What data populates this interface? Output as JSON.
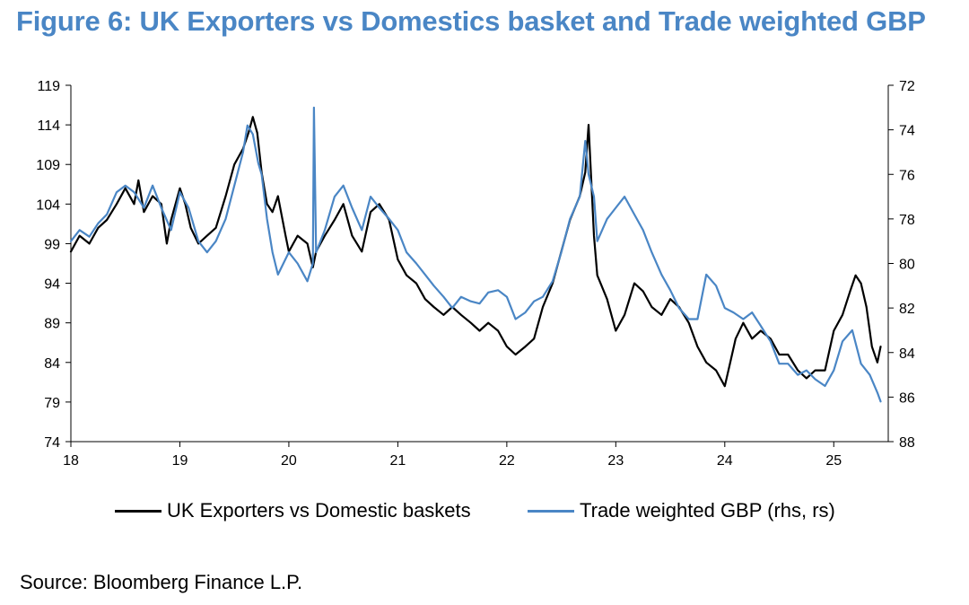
{
  "title": "Figure 6: UK Exporters vs Domestics basket and Trade weighted GBP",
  "source": "Source: Bloomberg Finance L.P.",
  "colors": {
    "title": "#4a86c5",
    "series_black": "#000000",
    "series_blue": "#4a86c5"
  },
  "chart_data": {
    "type": "line",
    "title": "Figure 6: UK Exporters vs Domestics basket and Trade weighted GBP",
    "xlabel": "",
    "ylabel": "",
    "x_ticks": [
      "18",
      "19",
      "20",
      "21",
      "22",
      "23",
      "24",
      "25"
    ],
    "xlim": [
      2018.0,
      2025.5
    ],
    "y_left": {
      "lim": [
        74,
        119
      ],
      "ticks": [
        74,
        79,
        84,
        89,
        94,
        99,
        104,
        109,
        114,
        119
      ]
    },
    "y_right": {
      "lim": [
        72,
        88
      ],
      "inverted": true,
      "ticks": [
        72,
        74,
        76,
        78,
        80,
        82,
        84,
        86,
        88
      ]
    },
    "grid": false,
    "legend_position": "bottom",
    "series": [
      {
        "name": "UK Exporters vs Domestic baskets",
        "axis": "left",
        "color": "#000000",
        "x": [
          2018.0,
          2018.08,
          2018.17,
          2018.25,
          2018.33,
          2018.42,
          2018.5,
          2018.58,
          2018.62,
          2018.67,
          2018.75,
          2018.83,
          2018.88,
          2018.92,
          2019.0,
          2019.05,
          2019.1,
          2019.17,
          2019.25,
          2019.33,
          2019.42,
          2019.5,
          2019.58,
          2019.63,
          2019.67,
          2019.71,
          2019.75,
          2019.8,
          2019.85,
          2019.9,
          2019.97,
          2020.0,
          2020.08,
          2020.17,
          2020.22,
          2020.25,
          2020.33,
          2020.42,
          2020.5,
          2020.58,
          2020.67,
          2020.75,
          2020.83,
          2020.92,
          2021.0,
          2021.08,
          2021.17,
          2021.25,
          2021.33,
          2021.42,
          2021.5,
          2021.58,
          2021.67,
          2021.75,
          2021.83,
          2021.92,
          2022.0,
          2022.08,
          2022.17,
          2022.25,
          2022.33,
          2022.42,
          2022.5,
          2022.58,
          2022.67,
          2022.72,
          2022.75,
          2022.8,
          2022.83,
          2022.92,
          2023.0,
          2023.08,
          2023.17,
          2023.25,
          2023.33,
          2023.42,
          2023.5,
          2023.58,
          2023.67,
          2023.75,
          2023.83,
          2023.92,
          2024.0,
          2024.05,
          2024.1,
          2024.17,
          2024.25,
          2024.33,
          2024.42,
          2024.5,
          2024.58,
          2024.67,
          2024.75,
          2024.83,
          2024.92,
          2025.0,
          2025.08,
          2025.15,
          2025.2,
          2025.25,
          2025.3,
          2025.35,
          2025.4,
          2025.43
        ],
        "values": [
          98,
          100,
          99,
          101,
          102,
          104,
          106,
          104,
          107,
          103,
          105,
          104,
          99,
          102,
          106,
          104,
          101,
          99,
          100,
          101,
          105,
          109,
          111,
          113,
          115,
          113,
          108,
          104,
          103,
          105,
          100,
          98,
          100,
          99,
          96,
          98,
          100,
          102,
          104,
          100,
          98,
          103,
          104,
          102,
          97,
          95,
          94,
          92,
          91,
          90,
          91,
          90,
          89,
          88,
          89,
          88,
          86,
          85,
          86,
          87,
          91,
          94,
          98,
          102,
          105,
          108,
          114,
          100,
          95,
          92,
          88,
          90,
          94,
          93,
          91,
          90,
          92,
          91,
          89,
          86,
          84,
          83,
          81,
          84,
          87,
          89,
          87,
          88,
          87,
          85,
          85,
          83,
          82,
          83,
          83,
          88,
          90,
          93,
          95,
          94,
          91,
          86,
          84,
          86
        ]
      },
      {
        "name": "Trade weighted GBP (rhs, rs)",
        "axis": "right",
        "color": "#4a86c5",
        "x": [
          2018.0,
          2018.08,
          2018.17,
          2018.25,
          2018.33,
          2018.42,
          2018.5,
          2018.58,
          2018.67,
          2018.75,
          2018.83,
          2018.92,
          2019.0,
          2019.08,
          2019.17,
          2019.25,
          2019.33,
          2019.42,
          2019.5,
          2019.58,
          2019.62,
          2019.67,
          2019.72,
          2019.75,
          2019.8,
          2019.85,
          2019.9,
          2020.0,
          2020.08,
          2020.17,
          2020.22,
          2020.23,
          2020.25,
          2020.33,
          2020.42,
          2020.5,
          2020.58,
          2020.67,
          2020.75,
          2020.83,
          2020.92,
          2021.0,
          2021.08,
          2021.17,
          2021.25,
          2021.33,
          2021.42,
          2021.5,
          2021.58,
          2021.67,
          2021.75,
          2021.83,
          2021.92,
          2022.0,
          2022.08,
          2022.17,
          2022.25,
          2022.33,
          2022.42,
          2022.5,
          2022.58,
          2022.67,
          2022.72,
          2022.75,
          2022.8,
          2022.83,
          2022.92,
          2023.0,
          2023.08,
          2023.17,
          2023.25,
          2023.33,
          2023.42,
          2023.5,
          2023.58,
          2023.67,
          2023.75,
          2023.83,
          2023.92,
          2024.0,
          2024.08,
          2024.17,
          2024.25,
          2024.33,
          2024.42,
          2024.5,
          2024.58,
          2024.67,
          2024.75,
          2024.83,
          2024.92,
          2025.0,
          2025.08,
          2025.17,
          2025.25,
          2025.33,
          2025.4,
          2025.43
        ],
        "values": [
          79,
          78.5,
          78.8,
          78.2,
          77.8,
          76.8,
          76.5,
          76.8,
          77.5,
          76.5,
          77.5,
          78.5,
          76.8,
          77.5,
          79,
          79.5,
          79,
          78,
          76.5,
          75,
          73.8,
          74.2,
          75.5,
          76,
          78,
          79.5,
          80.5,
          79.5,
          80,
          80.8,
          80,
          73,
          79.5,
          78.5,
          77,
          76.5,
          77.5,
          78.5,
          77,
          77.5,
          78,
          78.5,
          79.5,
          80,
          80.5,
          81,
          81.5,
          82,
          81.5,
          81.7,
          81.8,
          81.3,
          81.2,
          81.5,
          82.5,
          82.2,
          81.7,
          81.5,
          80.8,
          79.5,
          78,
          77,
          74.5,
          76,
          77,
          79,
          78,
          77.5,
          77,
          77.8,
          78.5,
          79.5,
          80.5,
          81.2,
          82,
          82.5,
          82.5,
          80.5,
          81,
          82,
          82.2,
          82.5,
          82.2,
          82.8,
          83.5,
          84.5,
          84.5,
          85,
          84.8,
          85.2,
          85.5,
          84.8,
          83.5,
          83,
          84.5,
          85,
          85.8,
          86.2
        ]
      }
    ]
  },
  "legend": {
    "items": [
      {
        "label": "UK Exporters vs Domestic baskets",
        "color": "#000000"
      },
      {
        "label": "Trade weighted GBP (rhs, rs)",
        "color": "#4a86c5"
      }
    ]
  }
}
